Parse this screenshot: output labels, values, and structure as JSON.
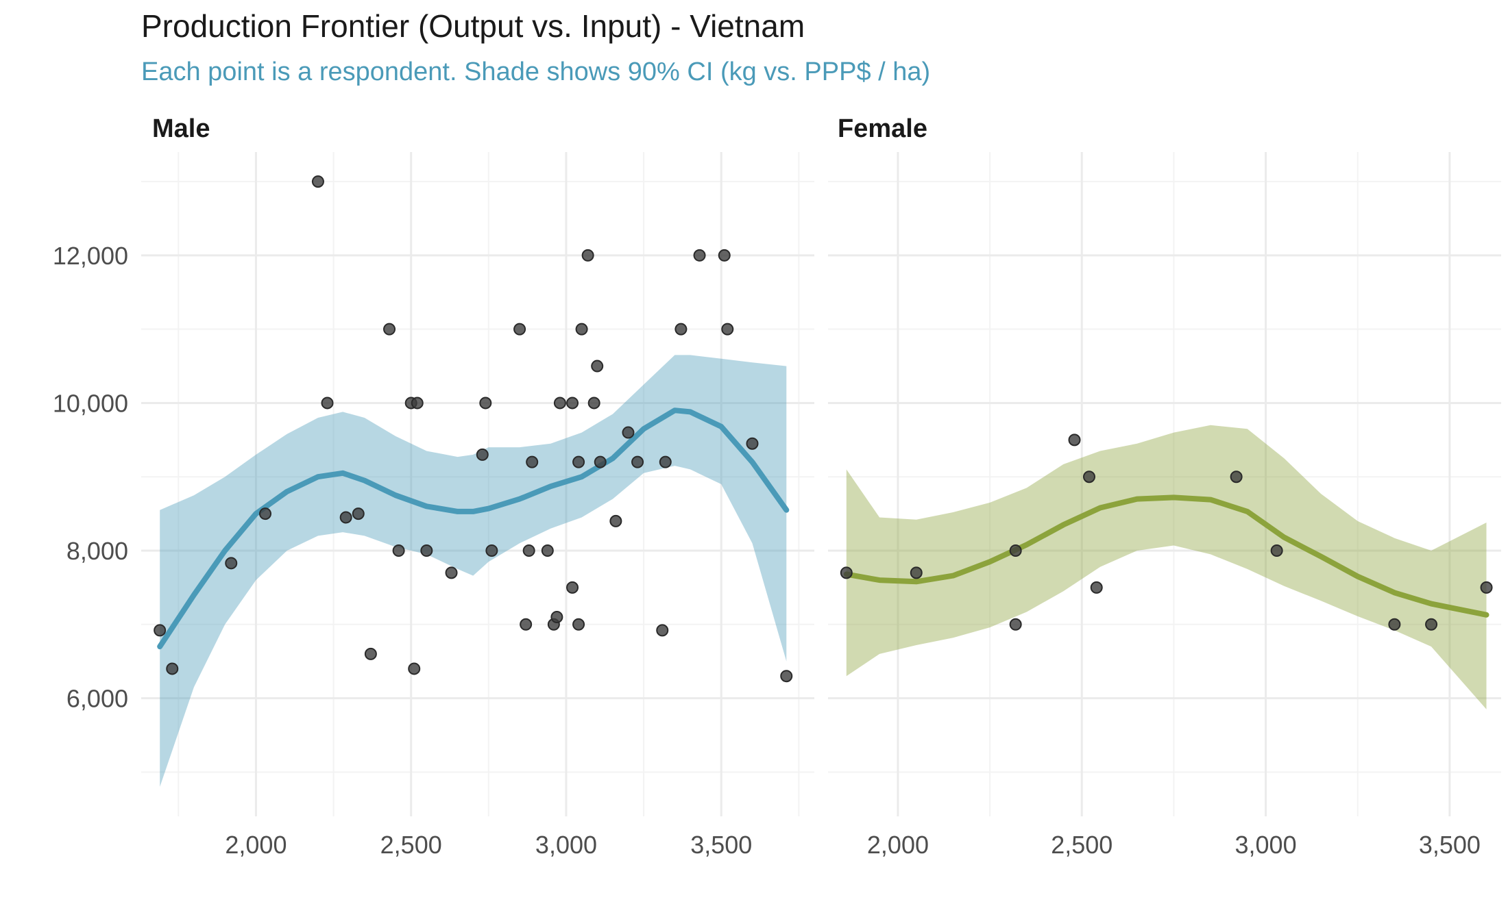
{
  "colors": {
    "male": "#4a9ab8",
    "female": "#8ca33c",
    "point": "#3d3d3d",
    "subtitle": "#4a9ab8",
    "grid": "#ebebeb"
  },
  "chart_data": {
    "type": "scatter",
    "title": "Production Frontier (Output vs. Input) - Vietnam",
    "subtitle": "Each point is a respondent. Shade shows 90% CI (kg vs. PPP$ / ha)",
    "xlabel": "",
    "ylabel": "",
    "ylim": [
      4400,
      13400
    ],
    "y_ticks": [
      6000,
      8000,
      10000,
      12000
    ],
    "y_tick_labels": [
      "6,000",
      "8,000",
      "10,000",
      "12,000"
    ],
    "grid": true,
    "legend": "none",
    "panels": [
      {
        "name": "Male",
        "color": "#4a9ab8",
        "xlim": [
          1630,
          3800
        ],
        "x_ticks": [
          2000,
          2500,
          3000,
          3500
        ],
        "x_tick_labels": [
          "2,000",
          "2,500",
          "3,000",
          "3,500"
        ],
        "points": [
          [
            1690,
            6920
          ],
          [
            1730,
            6400
          ],
          [
            1920,
            7830
          ],
          [
            2030,
            8500
          ],
          [
            2200,
            13000
          ],
          [
            2230,
            10000
          ],
          [
            2290,
            8450
          ],
          [
            2330,
            8500
          ],
          [
            2370,
            6600
          ],
          [
            2430,
            11000
          ],
          [
            2460,
            8000
          ],
          [
            2500,
            10000
          ],
          [
            2510,
            6400
          ],
          [
            2520,
            10000
          ],
          [
            2550,
            8000
          ],
          [
            2630,
            7700
          ],
          [
            2730,
            9300
          ],
          [
            2740,
            10000
          ],
          [
            2760,
            8000
          ],
          [
            2850,
            11000
          ],
          [
            2870,
            7000
          ],
          [
            2880,
            8000
          ],
          [
            2890,
            9200
          ],
          [
            2940,
            8000
          ],
          [
            2960,
            7000
          ],
          [
            2970,
            7100
          ],
          [
            2980,
            10000
          ],
          [
            3020,
            10000
          ],
          [
            3020,
            7500
          ],
          [
            3040,
            7000
          ],
          [
            3040,
            9200
          ],
          [
            3050,
            11000
          ],
          [
            3070,
            12000
          ],
          [
            3090,
            10000
          ],
          [
            3100,
            10500
          ],
          [
            3110,
            9200
          ],
          [
            3160,
            8400
          ],
          [
            3200,
            9600
          ],
          [
            3230,
            9200
          ],
          [
            3310,
            6920
          ],
          [
            3320,
            9200
          ],
          [
            3370,
            11000
          ],
          [
            3430,
            12000
          ],
          [
            3510,
            12000
          ],
          [
            3520,
            11000
          ],
          [
            3600,
            9450
          ],
          [
            3710,
            6300
          ]
        ],
        "smooth": {
          "x": [
            1690,
            1800,
            1900,
            2000,
            2100,
            2200,
            2280,
            2350,
            2450,
            2550,
            2650,
            2700,
            2750,
            2850,
            2950,
            3050,
            3150,
            3250,
            3350,
            3400,
            3500,
            3600,
            3710
          ],
          "y": [
            6700,
            7400,
            8000,
            8500,
            8800,
            9000,
            9050,
            8950,
            8750,
            8600,
            8530,
            8530,
            8570,
            8700,
            8870,
            9000,
            9250,
            9650,
            9900,
            9880,
            9680,
            9200,
            8550
          ],
          "lower": [
            4800,
            6150,
            7000,
            7600,
            8000,
            8200,
            8250,
            8200,
            8050,
            7950,
            7750,
            7660,
            7850,
            8100,
            8300,
            8450,
            8700,
            9050,
            9150,
            9100,
            8900,
            8100,
            6500
          ],
          "upper": [
            8550,
            8750,
            9000,
            9300,
            9580,
            9800,
            9880,
            9800,
            9550,
            9350,
            9270,
            9300,
            9400,
            9400,
            9450,
            9600,
            9850,
            10250,
            10650,
            10650,
            10600,
            10550,
            10500
          ]
        }
      },
      {
        "name": "Female",
        "color": "#8ca33c",
        "xlim": [
          1810,
          3640
        ],
        "x_ticks": [
          2000,
          2500,
          3000,
          3500
        ],
        "x_tick_labels": [
          "2,000",
          "2,500",
          "3,000",
          "3,500"
        ],
        "points": [
          [
            1860,
            7700
          ],
          [
            2050,
            7700
          ],
          [
            2320,
            8000
          ],
          [
            2320,
            7000
          ],
          [
            2480,
            9500
          ],
          [
            2520,
            9000
          ],
          [
            2540,
            7500
          ],
          [
            2920,
            9000
          ],
          [
            3030,
            8000
          ],
          [
            3350,
            7000
          ],
          [
            3450,
            7000
          ],
          [
            3600,
            7500
          ]
        ],
        "smooth": {
          "x": [
            1860,
            1950,
            2050,
            2150,
            2250,
            2350,
            2450,
            2550,
            2650,
            2750,
            2850,
            2950,
            3050,
            3150,
            3250,
            3350,
            3450,
            3600
          ],
          "y": [
            7680,
            7600,
            7580,
            7660,
            7850,
            8080,
            8350,
            8580,
            8700,
            8720,
            8690,
            8530,
            8180,
            7920,
            7650,
            7430,
            7280,
            7130
          ],
          "lower": [
            6300,
            6600,
            6720,
            6820,
            6960,
            7170,
            7450,
            7780,
            8000,
            8070,
            7950,
            7750,
            7520,
            7320,
            7110,
            6920,
            6700,
            5850
          ],
          "upper": [
            9100,
            8450,
            8420,
            8520,
            8650,
            8850,
            9170,
            9350,
            9450,
            9600,
            9700,
            9650,
            9250,
            8770,
            8400,
            8170,
            8000,
            8380
          ]
        }
      }
    ]
  }
}
